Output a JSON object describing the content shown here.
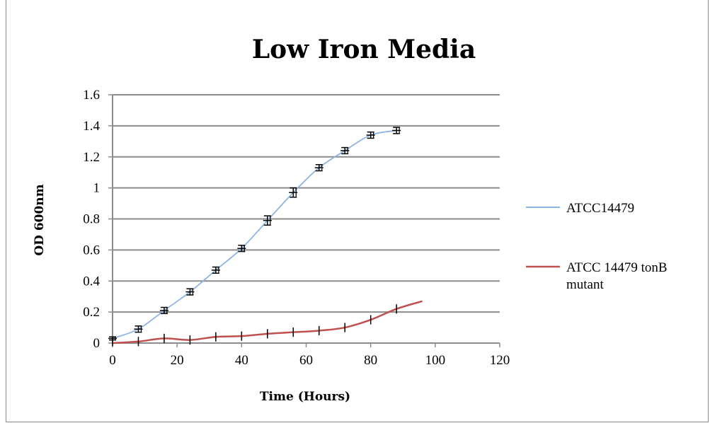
{
  "chart_data": {
    "type": "line",
    "title": "Low Iron Media",
    "xlabel": "Time (Hours)",
    "ylabel": "OD 600nm",
    "xlim": [
      0,
      120
    ],
    "ylim": [
      0,
      1.6
    ],
    "xticks": [
      "0",
      "20",
      "40",
      "60",
      "80",
      "100",
      "120"
    ],
    "yticks": [
      "0",
      "0.2",
      "0.4",
      "0.6",
      "0.8",
      "1",
      "1.2",
      "1.4",
      "1.6"
    ],
    "grid": "horizontal",
    "legend": "right",
    "series": [
      {
        "name": "ATCC14479",
        "color": "#8db4e2",
        "x": [
          0,
          8,
          16,
          24,
          32,
          40,
          48,
          56,
          64,
          72,
          80,
          88
        ],
        "y": [
          0.03,
          0.09,
          0.21,
          0.33,
          0.47,
          0.61,
          0.79,
          0.97,
          1.13,
          1.24,
          1.34,
          1.37
        ],
        "error_bars": [
          0.01,
          0.02,
          0.02,
          0.02,
          0.02,
          0.02,
          0.03,
          0.03,
          0.02,
          0.02,
          0.02,
          0.02
        ]
      },
      {
        "name": "ATCC 14479 tonB mutant",
        "color": "#c0504d",
        "x": [
          0,
          8,
          16,
          24,
          32,
          40,
          48,
          56,
          64,
          72,
          80,
          88,
          96
        ],
        "y": [
          0.0,
          0.01,
          0.03,
          0.02,
          0.04,
          0.045,
          0.06,
          0.07,
          0.08,
          0.1,
          0.15,
          0.22,
          0.27
        ],
        "error_bars": [
          0.02,
          0.03,
          0.03,
          0.03,
          0.03,
          0.03,
          0.03,
          0.03,
          0.03,
          0.03,
          0.03,
          0.03,
          0.0
        ]
      }
    ]
  }
}
